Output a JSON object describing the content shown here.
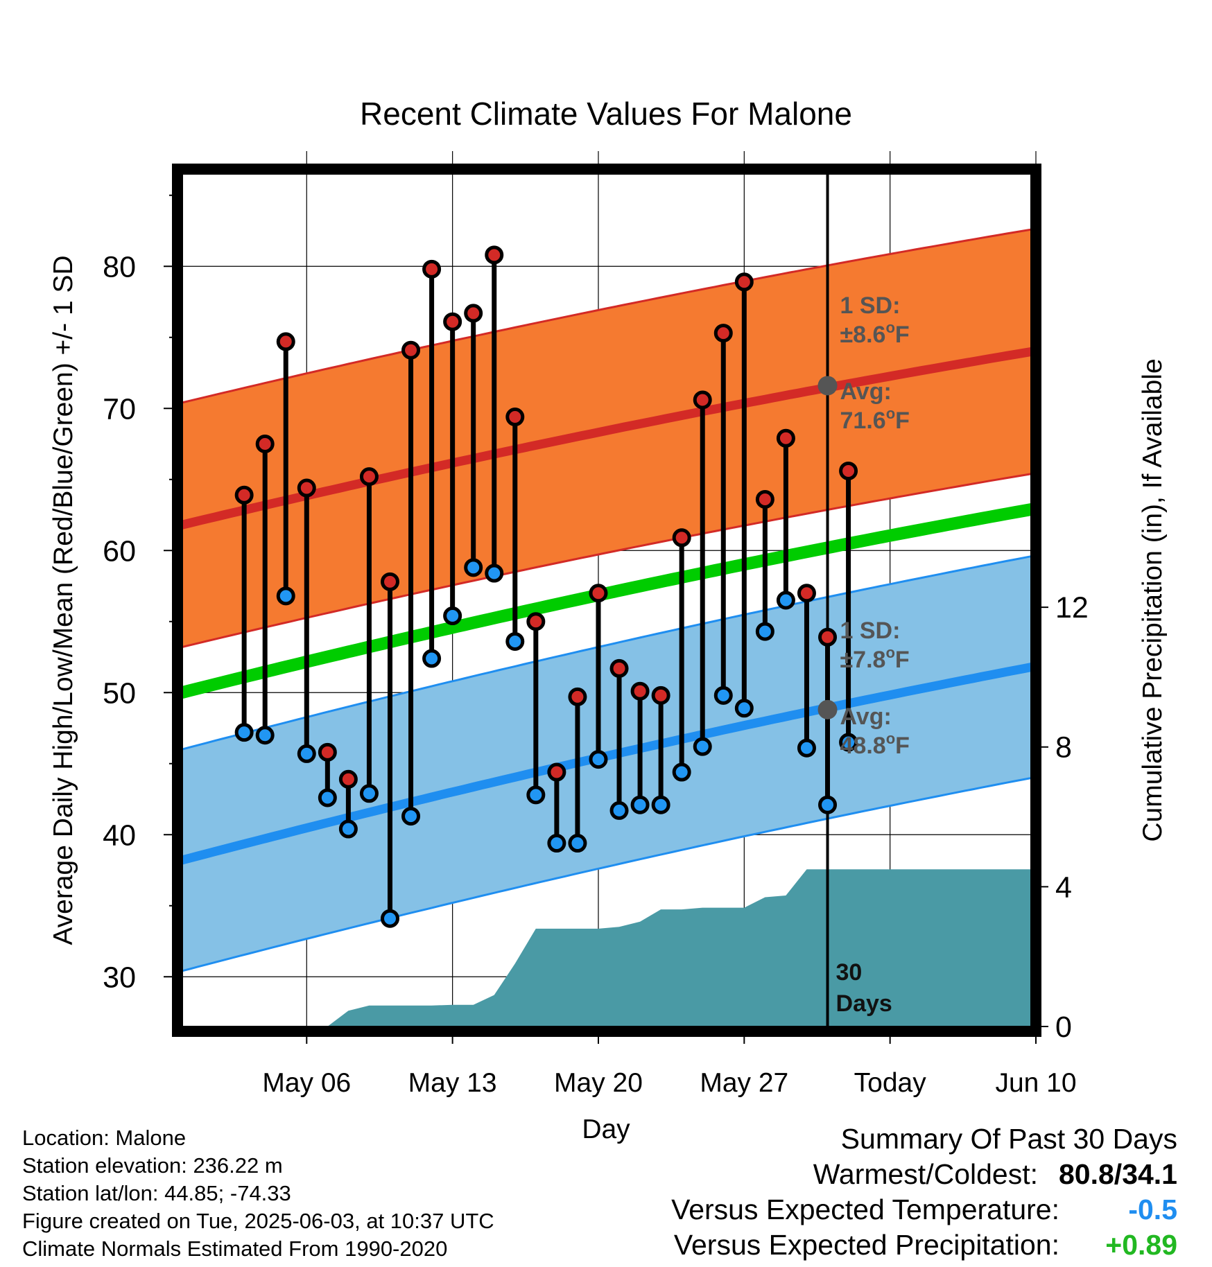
{
  "chart_data": {
    "type": "line",
    "title": "Recent Climate Values For Malone",
    "xlabel": "Day",
    "ylabel": "Average Daily High/Low/Mean (Red/Blue/Green) +/- 1 SD",
    "y2label": "Cumulative Precipitation (in), If Available",
    "x_ticks": [
      "May 06",
      "May 13",
      "May 20",
      "May 27",
      "Today",
      "Jun 10"
    ],
    "y_ticks": [
      "30",
      "40",
      "50",
      "60",
      "70",
      "80"
    ],
    "y2_ticks": [
      "0",
      "4",
      "8",
      "12"
    ],
    "xlim": [
      -3,
      37.8
    ],
    "ylim": [
      26.5,
      86.5
    ],
    "y2lim": [
      0,
      24.4
    ],
    "grid": true,
    "today_index": 28,
    "today_label": "30 Days",
    "daily_highs": [
      63.9,
      67.5,
      74.7,
      64.4,
      45.8,
      43.9,
      65.2,
      57.8,
      74.1,
      79.8,
      76.1,
      76.7,
      80.8,
      69.4,
      55.0,
      44.4,
      49.7,
      57.0,
      51.7,
      50.1,
      49.8,
      60.9,
      70.6,
      75.3,
      78.9,
      63.6,
      67.9,
      57.0,
      53.9,
      65.6
    ],
    "daily_lows": [
      47.2,
      47.0,
      56.8,
      45.7,
      42.6,
      40.4,
      42.9,
      34.1,
      41.3,
      52.4,
      55.4,
      58.8,
      58.4,
      53.6,
      42.8,
      39.4,
      39.4,
      45.3,
      41.7,
      42.1,
      42.1,
      44.4,
      46.2,
      49.8,
      48.9,
      54.3,
      56.5,
      46.1,
      42.1,
      46.5
    ],
    "normal_high": {
      "start": 61.8,
      "end": 74.0,
      "sd": 8.6
    },
    "normal_low": {
      "start": 38.2,
      "end": 51.8,
      "sd": 7.8
    },
    "normal_mean": {
      "start": 50.0,
      "end": 62.9
    },
    "cumulative_precip": [
      0,
      0,
      0,
      0,
      0,
      0.45,
      0.6,
      0.6,
      0.6,
      0.6,
      0.62,
      0.62,
      0.9,
      1.8,
      2.8,
      2.8,
      2.8,
      2.8,
      2.85,
      3.0,
      3.35,
      3.35,
      3.4,
      3.4,
      3.4,
      3.7,
      3.75,
      4.5,
      4.5,
      4.5,
      4.5
    ],
    "annotations": {
      "high_sd_label": "1 SD:",
      "high_sd_value": "±8.6",
      "high_avg_label": "Avg:",
      "high_avg_value": "71.6",
      "low_sd_label": "1 SD:",
      "low_sd_value": "±7.8",
      "low_avg_label": "Avg:",
      "low_avg_value": "48.8",
      "degree_unit": "o",
      "unit_letter": "F",
      "today_high_avg": 71.6,
      "today_low_avg": 48.8
    },
    "colors": {
      "high_band": "#f57a30",
      "high_line": "#d32a26",
      "low_band": "#85c1e6",
      "low_line": "#1f8ef0",
      "mean_line": "#00cc00",
      "precip": "#4a9aa5",
      "high_dot": "#d32a26",
      "low_dot": "#2196f3",
      "annotation": "#555555"
    }
  },
  "meta": {
    "location": "Location: Malone",
    "elevation": "Station elevation: 236.22 m",
    "latlon": "Station lat/lon: 44.85; -74.33",
    "created": "Figure created on Tue, 2025-06-03, at 10:37 UTC",
    "normals": "Climate Normals Estimated From 1990-2020"
  },
  "summary": {
    "title": "Summary Of Past 30 Days",
    "warm_cold_label": "Warmest/Coldest:",
    "warm_cold_value": "80.8/34.1",
    "temp_label": "Versus Expected Temperature:",
    "temp_value": "-0.5",
    "temp_color": "#1f8ef0",
    "precip_label": "Versus Expected Precipitation:",
    "precip_value": "+0.89",
    "precip_color": "#22b822"
  }
}
